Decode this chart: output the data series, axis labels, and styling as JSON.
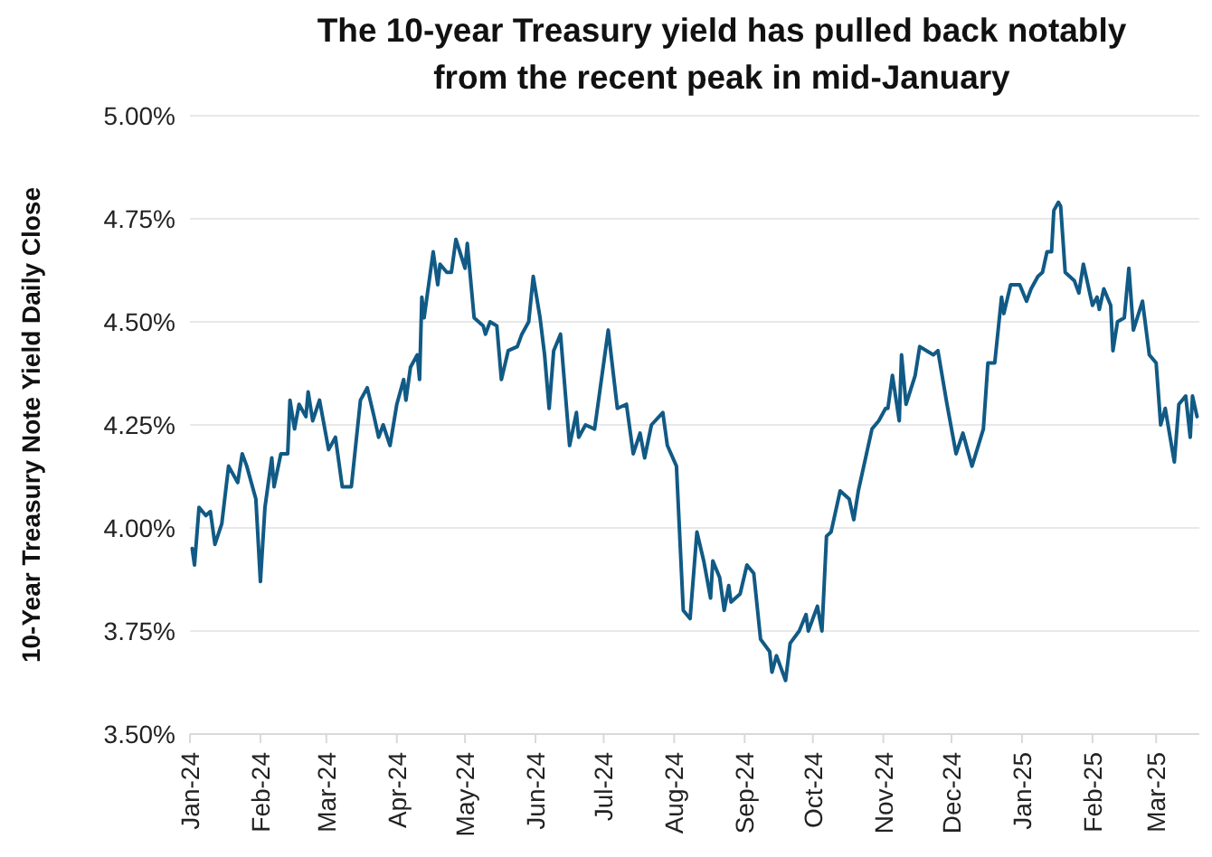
{
  "chart_data": {
    "type": "line",
    "title": "The 10-year Treasury yield has pulled back notably\nfrom the recent peak in mid-January",
    "ylabel": "10-Year Treasury Note Yield Daily Close",
    "x": [
      "2024-01-02",
      "2024-01-03",
      "2024-01-05",
      "2024-01-08",
      "2024-01-10",
      "2024-01-12",
      "2024-01-15",
      "2024-01-18",
      "2024-01-22",
      "2024-01-24",
      "2024-01-26",
      "2024-01-30",
      "2024-02-01",
      "2024-02-03",
      "2024-02-06",
      "2024-02-07",
      "2024-02-10",
      "2024-02-13",
      "2024-02-14",
      "2024-02-16",
      "2024-02-18",
      "2024-02-21",
      "2024-02-22",
      "2024-02-24",
      "2024-02-27",
      "2024-03-02",
      "2024-03-05",
      "2024-03-08",
      "2024-03-12",
      "2024-03-16",
      "2024-03-19",
      "2024-03-22",
      "2024-03-24",
      "2024-03-26",
      "2024-03-29",
      "2024-04-01",
      "2024-04-04",
      "2024-04-05",
      "2024-04-07",
      "2024-04-10",
      "2024-04-11",
      "2024-04-12",
      "2024-04-13",
      "2024-04-17",
      "2024-04-19",
      "2024-04-20",
      "2024-04-23",
      "2024-04-25",
      "2024-04-27",
      "2024-05-01",
      "2024-05-02",
      "2024-05-05",
      "2024-05-09",
      "2024-05-10",
      "2024-05-12",
      "2024-05-15",
      "2024-05-17",
      "2024-05-20",
      "2024-05-24",
      "2024-05-26",
      "2024-05-29",
      "2024-05-31",
      "2024-06-03",
      "2024-06-05",
      "2024-06-07",
      "2024-06-09",
      "2024-06-12",
      "2024-06-16",
      "2024-06-19",
      "2024-06-20",
      "2024-06-23",
      "2024-06-27",
      "2024-06-29",
      "2024-07-03",
      "2024-07-07",
      "2024-07-11",
      "2024-07-14",
      "2024-07-17",
      "2024-07-19",
      "2024-07-22",
      "2024-07-27",
      "2024-07-29",
      "2024-08-02",
      "2024-08-05",
      "2024-08-08",
      "2024-08-11",
      "2024-08-14",
      "2024-08-17",
      "2024-08-18",
      "2024-08-21",
      "2024-08-23",
      "2024-08-25",
      "2024-08-26",
      "2024-08-30",
      "2024-09-02",
      "2024-09-05",
      "2024-09-08",
      "2024-09-12",
      "2024-09-13",
      "2024-09-15",
      "2024-09-19",
      "2024-09-21",
      "2024-09-25",
      "2024-09-28",
      "2024-09-29",
      "2024-10-03",
      "2024-10-05",
      "2024-10-07",
      "2024-10-09",
      "2024-10-13",
      "2024-10-17",
      "2024-10-19",
      "2024-10-21",
      "2024-10-25",
      "2024-10-27",
      "2024-10-30",
      "2024-11-02",
      "2024-11-03",
      "2024-11-05",
      "2024-11-08",
      "2024-11-09",
      "2024-11-11",
      "2024-11-15",
      "2024-11-17",
      "2024-11-20",
      "2024-11-23",
      "2024-11-25",
      "2024-11-29",
      "2024-12-03",
      "2024-12-06",
      "2024-12-10",
      "2024-12-15",
      "2024-12-17",
      "2024-12-20",
      "2024-12-23",
      "2024-12-24",
      "2024-12-27",
      "2024-12-31",
      "2025-01-03",
      "2025-01-05",
      "2025-01-08",
      "2025-01-10",
      "2025-01-12",
      "2025-01-14",
      "2025-01-15",
      "2025-01-17",
      "2025-01-18",
      "2025-01-20",
      "2025-01-24",
      "2025-01-26",
      "2025-01-28",
      "2025-02-01",
      "2025-02-03",
      "2025-02-04",
      "2025-02-06",
      "2025-02-09",
      "2025-02-10",
      "2025-02-12",
      "2025-02-15",
      "2025-02-17",
      "2025-02-19",
      "2025-02-23",
      "2025-02-26",
      "2025-03-01",
      "2025-03-03",
      "2025-03-05",
      "2025-03-09",
      "2025-03-11",
      "2025-03-14",
      "2025-03-16",
      "2025-03-17",
      "2025-03-19"
    ],
    "series": [
      {
        "color": "#115a85",
        "values": [
          3.95,
          3.91,
          4.05,
          4.03,
          4.04,
          3.96,
          4.01,
          4.15,
          4.11,
          4.18,
          4.15,
          4.07,
          3.87,
          4.05,
          4.17,
          4.1,
          4.18,
          4.18,
          4.31,
          4.24,
          4.3,
          4.27,
          4.33,
          4.26,
          4.31,
          4.19,
          4.22,
          4.1,
          4.1,
          4.31,
          4.34,
          4.27,
          4.22,
          4.25,
          4.2,
          4.3,
          4.36,
          4.31,
          4.39,
          4.42,
          4.36,
          4.56,
          4.51,
          4.67,
          4.59,
          4.64,
          4.62,
          4.62,
          4.7,
          4.63,
          4.69,
          4.51,
          4.49,
          4.47,
          4.5,
          4.49,
          4.36,
          4.43,
          4.44,
          4.47,
          4.5,
          4.61,
          4.51,
          4.42,
          4.29,
          4.43,
          4.47,
          4.2,
          4.28,
          4.22,
          4.25,
          4.24,
          4.32,
          4.48,
          4.29,
          4.3,
          4.18,
          4.23,
          4.17,
          4.25,
          4.28,
          4.2,
          4.15,
          3.8,
          3.78,
          3.99,
          3.92,
          3.83,
          3.92,
          3.88,
          3.8,
          3.86,
          3.82,
          3.84,
          3.91,
          3.89,
          3.73,
          3.7,
          3.65,
          3.69,
          3.63,
          3.72,
          3.75,
          3.79,
          3.75,
          3.81,
          3.75,
          3.98,
          3.99,
          4.09,
          4.07,
          4.02,
          4.09,
          4.19,
          4.24,
          4.26,
          4.29,
          4.29,
          4.37,
          4.26,
          4.42,
          4.3,
          4.37,
          4.44,
          4.43,
          4.42,
          4.43,
          4.3,
          4.18,
          4.23,
          4.15,
          4.24,
          4.4,
          4.4,
          4.56,
          4.52,
          4.59,
          4.59,
          4.55,
          4.58,
          4.61,
          4.62,
          4.67,
          4.67,
          4.77,
          4.79,
          4.78,
          4.62,
          4.6,
          4.57,
          4.64,
          4.54,
          4.56,
          4.53,
          4.58,
          4.54,
          4.43,
          4.5,
          4.51,
          4.63,
          4.48,
          4.55,
          4.42,
          4.4,
          4.25,
          4.29,
          4.16,
          4.3,
          4.32,
          4.22,
          4.32,
          4.27
        ]
      }
    ],
    "xlim": [
      "2024-01-01",
      "2025-03-20"
    ],
    "xticks": [
      {
        "value": "2024-01-01",
        "label": "Jan-24"
      },
      {
        "value": "2024-02-01",
        "label": "Feb-24"
      },
      {
        "value": "2024-03-01",
        "label": "Mar-24"
      },
      {
        "value": "2024-04-01",
        "label": "Apr-24"
      },
      {
        "value": "2024-05-01",
        "label": "May-24"
      },
      {
        "value": "2024-06-01",
        "label": "Jun-24"
      },
      {
        "value": "2024-07-01",
        "label": "Jul-24"
      },
      {
        "value": "2024-08-01",
        "label": "Aug-24"
      },
      {
        "value": "2024-09-01",
        "label": "Sep-24"
      },
      {
        "value": "2024-10-01",
        "label": "Oct-24"
      },
      {
        "value": "2024-11-01",
        "label": "Nov-24"
      },
      {
        "value": "2024-12-01",
        "label": "Dec-24"
      },
      {
        "value": "2025-01-01",
        "label": "Jan-25"
      },
      {
        "value": "2025-02-01",
        "label": "Feb-25"
      },
      {
        "value": "2025-03-01",
        "label": "Mar-25"
      }
    ],
    "ylim": [
      3.5,
      5.0
    ],
    "yticks": [
      {
        "value": 3.5,
        "label": "3.50%"
      },
      {
        "value": 3.75,
        "label": "3.75%"
      },
      {
        "value": 4.0,
        "label": "4.00%"
      },
      {
        "value": 4.25,
        "label": "4.25%"
      },
      {
        "value": 4.5,
        "label": "4.50%"
      },
      {
        "value": 4.75,
        "label": "4.75%"
      },
      {
        "value": 5.0,
        "label": "5.00%"
      }
    ],
    "grid": "y"
  }
}
